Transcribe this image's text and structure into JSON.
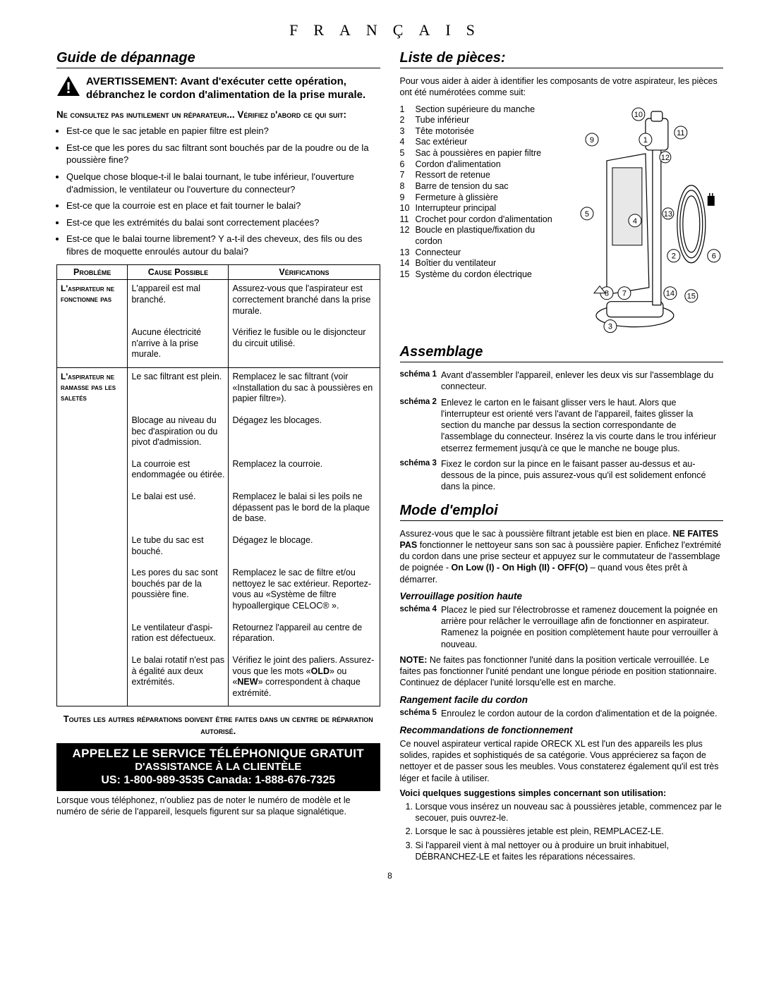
{
  "lang_header": "FRANÇAIS",
  "left": {
    "heading": "Guide de dépannage",
    "warning": "AVERTISSEMENT: Avant d'exécuter cette opération, débranchez le cordon d'alimentation de la prise murale.",
    "consult_heading": "Ne consultez pas inutilement un réparateur... Vérifiez d'abord ce qui suit:",
    "bullets": [
      "Est-ce que le sac jetable en papier filtre est plein?",
      "Est-ce que les pores du sac filtrant sont bouchés par de la poudre ou de la poussière fine?",
      "Quelque chose bloque-t-il le balai tournant, le tube inférieur, l'ouverture d'admission, le ventilateur ou l'ouverture du connecteur?",
      "Est-ce que la courroie est en place et fait tourner le balai?",
      "Est-ce que les extrémités du balai sont correctement placées?",
      "Est-ce que le balai tourne librement? Y a-t-il des cheveux, des fils ou des fibres de moquette enroulés autour du balai?"
    ],
    "table": {
      "headers": {
        "problem": "Probléme",
        "cause": "Cause Possible",
        "check": "Vérifications"
      },
      "group1_problem": "L'aspirateur ne fonctionne pas",
      "group1": [
        {
          "cause": "L'appareil est mal branché.",
          "check": "Assurez-vous que l'aspirateur est correctement branché dans la prise murale."
        },
        {
          "cause": "Aucune électricité n'arrive à la prise murale.",
          "check": "Vérifiez le fusible ou le disjoncteur du circuit utilisé."
        }
      ],
      "group2_problem": "L'aspirateur ne ramasse pas les saletés",
      "group2": [
        {
          "cause": "Le sac filtrant est plein.",
          "check": "Remplacez le sac filtrant (voir «Installation du sac à poussières en papier filtre»)."
        },
        {
          "cause": "Blocage au niveau du bec d'aspiration ou du pivot d'admission.",
          "check": "Dégagez les blocages."
        },
        {
          "cause": "La courroie est endommagée ou étirée.",
          "check": "Remplacez la courroie."
        },
        {
          "cause": "Le balai est usé.",
          "check": "Remplacez le balai si les poils ne dépassent pas le bord de la plaque de base."
        },
        {
          "cause": "Le tube du sac est bouché.",
          "check": "Dégagez le blocage."
        },
        {
          "cause": "Les pores du sac sont bouchés par de la poussière fine.",
          "check": "Remplacez le sac de filtre et/ou nettoyez le sac extérieur. Reportez-vous au «Système de filtre hypoallergique CELOC® »."
        },
        {
          "cause": "Le ventilateur d'aspi-ration est défectueux.",
          "check": "Retournez l'appareil au centre de réparation."
        },
        {
          "cause": "Le balai rotatif n'est pas à égalité aux deux extrémités.",
          "check": "Vérifiez le joint des paliers. Assurez-vous que les mots «OLD» ou «NEW» correspondent à chaque extrémité."
        }
      ]
    },
    "repair_note": "Toutes les autres réparations doivent être faites dans un centre de réparation autorisé.",
    "call_line1": "Appelez le service téléphonique gratuit",
    "call_line2": "d'assistance à la clientèle",
    "call_line3": "US: 1-800-989-3535 Canada: 1-888-676-7325",
    "footnote": "Lorsque vous téléphonez, n'oubliez pas de noter le numéro de modèle et le numéro de série de l'appareil, lesquels figurent sur sa plaque signalétique."
  },
  "right": {
    "parts_heading": "Liste de pièces:",
    "parts_intro": "Pour vous aider à aider à identifier les composants de votre aspirateur, les pièces ont été numérotées comme suit:",
    "parts": [
      {
        "n": "1",
        "t": "Section supérieure du manche"
      },
      {
        "n": "2",
        "t": "Tube inférieur"
      },
      {
        "n": "3",
        "t": "Tête motorisée"
      },
      {
        "n": "4",
        "t": "Sac extérieur"
      },
      {
        "n": "5",
        "t": "Sac à poussières en papier filtre"
      },
      {
        "n": "6",
        "t": "Cordon d'alimentation"
      },
      {
        "n": "7",
        "t": "Ressort de retenue"
      },
      {
        "n": "8",
        "t": "Barre de tension du sac"
      },
      {
        "n": "9",
        "t": "Fermeture à glissière"
      },
      {
        "n": "10",
        "t": "Interrupteur principal"
      },
      {
        "n": "11",
        "t": "Crochet pour cordon d'alimentation"
      },
      {
        "n": "12",
        "t": "Boucle en plastique/fixation du cordon"
      },
      {
        "n": "13",
        "t": "Connecteur"
      },
      {
        "n": "14",
        "t": "Boîtier du ventilateur"
      },
      {
        "n": "15",
        "t": "Système du cordon électrique"
      }
    ],
    "assembly_heading": "Assemblage",
    "assembly": [
      {
        "label": "schéma 1",
        "text": "Avant d'assembler l'appareil, enlever les deux vis sur l'assemblage du connecteur."
      },
      {
        "label": "schéma 2",
        "text": "Enlevez le carton en le faisant glisser vers le haut. Alors que l'interrupteur est orienté vers l'avant de l'appareil, faites glisser la section du manche par dessus la section correspondante de l'assemblage du connecteur. Insérez la vis courte dans le trou inférieur etserrez fermement jusqu'à ce que le manche ne bouge plus."
      },
      {
        "label": "schéma 3",
        "text": "Fixez le cordon sur la pince en le faisant passer au-dessus et au-dessous de la pince, puis assurez-vous qu'il est solidement enfoncé dans la pince."
      }
    ],
    "mode_heading": "Mode d'emploi",
    "mode_intro": "Assurez-vous que le sac à poussière filtrant jetable est bien en place. NE FAITES PAS fonctionner le nettoyeur sans son sac à poussière papier. Enfichez l'extrémité du cordon dans une prise secteur et appuyez sur le commutateur de l'assemblage de poignée - On Low (I) - On High (II) - OFF(O) – quand vous êtes prêt à démarrer.",
    "sub1": "Verrouillage position haute",
    "schema4": {
      "label": "schéma 4",
      "text": "Placez le pied sur l'électrobrosse et ramenez doucement la poignée en arrière pour relâcher le verrouillage afin de fonctionner en aspirateur. Ramenez la poignée en position complètement haute pour verrouiller à nouveau."
    },
    "note": "NOTE: Ne faites pas fonctionner l'unité dans la position verticale verrouillée. Le faites pas fonctionner l'unité pendant une longue période en position stationnaire. Continuez de déplacer l'unité lorsqu'elle est en marche.",
    "sub2": "Rangement facile du cordon",
    "schema5": {
      "label": "schéma 5",
      "text": "Enroulez le cordon autour de la cordon d'alimentation et de la poignée."
    },
    "sub3": "Recommandations de fonctionnement",
    "rec_intro": "Ce nouvel aspirateur vertical rapide ORECK XL est l'un des appareils les plus solides, rapides et sophistiqués de sa catégorie. Vous apprécierez sa façon de nettoyer et de passer sous les meubles. Vous constaterez également qu'il est très léger et facile à utiliser.",
    "rec_bold": "Voici quelques suggestions simples concernant son utilisation:",
    "recs": [
      "Lorsque vous insérez un nouveau sac à poussières jetable, commencez par le secouer, puis ouvrez-le.",
      "Lorsque le sac à poussières jetable est plein, REMPLACEZ-LE.",
      "Si l'appareil vient à mal nettoyer ou à produire un bruit inhabituel, DÉBRANCHEZ-LE et faites les réparations nécessaires."
    ]
  },
  "page_number": "8"
}
